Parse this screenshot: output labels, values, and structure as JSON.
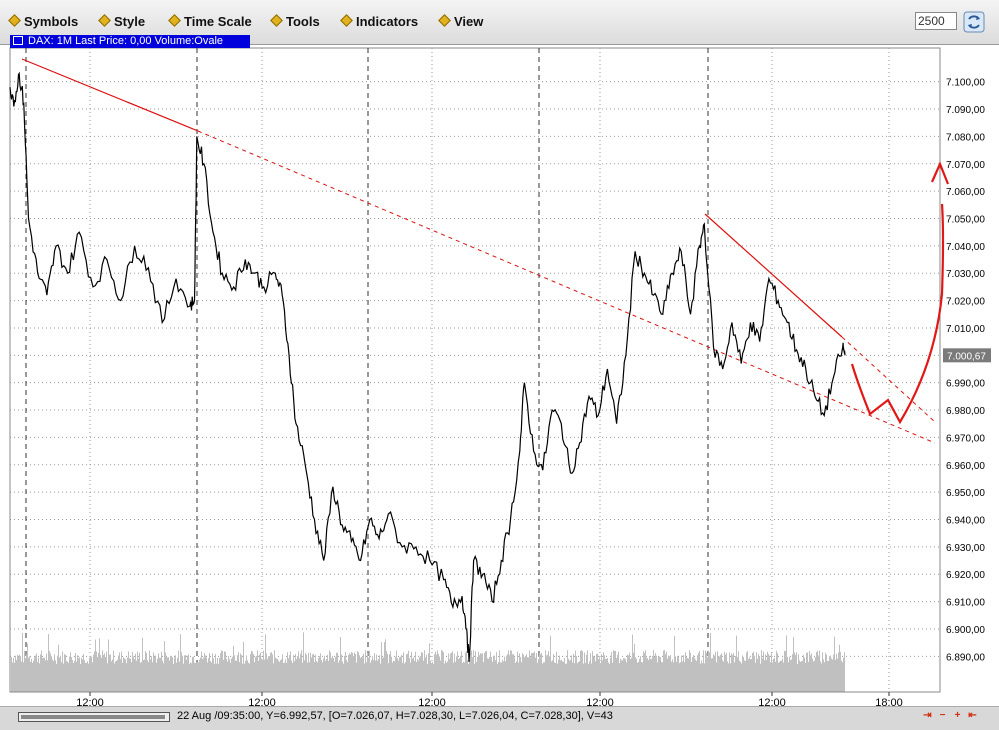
{
  "menu": {
    "items": [
      {
        "label": "Symbols"
      },
      {
        "label": "Style"
      },
      {
        "label": "Time Scale"
      },
      {
        "label": "Tools"
      },
      {
        "label": "Indicators"
      },
      {
        "label": "View"
      }
    ],
    "bars_value": "2500"
  },
  "chart_title": "DAX: 1M Last Price: 0,00 Volume:Ovale",
  "status": "22 Aug /09:35:00, Y=6.992,57, [O=7.026,07, H=7.028,30, L=7.026,04, C=7.028,30], V=43",
  "colors": {
    "price": "#000000",
    "trend": "#dd1111",
    "volume": "#c0c0c0",
    "price_tag": "#7a7a7a"
  },
  "chart_data": {
    "type": "line",
    "y_axis": {
      "min": 6885,
      "max": 7105,
      "step": 10,
      "tick_labels": [
        "7.100,00",
        "7.090,00",
        "7.080,00",
        "7.070,00",
        "7.060,00",
        "7.050,00",
        "7.040,00",
        "7.030,00",
        "7.020,00",
        "7.010,00",
        "7.000,00",
        "6.990,00",
        "6.980,00",
        "6.970,00",
        "6.960,00",
        "6.950,00",
        "6.940,00",
        "6.930,00",
        "6.920,00",
        "6.910,00",
        "6.900,00",
        "6.890,00"
      ]
    },
    "x_tick_labels": [
      "12:00",
      "12:00",
      "12:00",
      "12:00",
      "12:00",
      "18:00"
    ],
    "last_price_label": "7.000,67",
    "series": [
      {
        "points": [
          [
            0,
            7098
          ],
          [
            2,
            7093
          ],
          [
            4,
            7103
          ],
          [
            6,
            7092
          ],
          [
            8,
            7050
          ],
          [
            12,
            7030
          ],
          [
            16,
            7022
          ],
          [
            20,
            7040
          ],
          [
            25,
            7030
          ],
          [
            30,
            7045
          ],
          [
            36,
            7025
          ],
          [
            42,
            7035
          ],
          [
            48,
            7020
          ],
          [
            54,
            7040
          ],
          [
            60,
            7032
          ],
          [
            66,
            7012
          ],
          [
            72,
            7028
          ],
          [
            78,
            7018
          ],
          [
            80,
            7020
          ],
          [
            81,
            7080
          ],
          [
            84,
            7070
          ],
          [
            88,
            7045
          ],
          [
            92,
            7030
          ],
          [
            97,
            7025
          ],
          [
            102,
            7035
          ],
          [
            106,
            7030
          ],
          [
            110,
            7025
          ],
          [
            115,
            7030
          ],
          [
            118,
            7022
          ],
          [
            121,
            7000
          ],
          [
            124,
            6975
          ],
          [
            128,
            6960
          ],
          [
            132,
            6940
          ],
          [
            136,
            6925
          ],
          [
            140,
            6952
          ],
          [
            144,
            6938
          ],
          [
            148,
            6932
          ],
          [
            152,
            6925
          ],
          [
            156,
            6940
          ],
          [
            160,
            6933
          ],
          [
            164,
            6942
          ],
          [
            170,
            6930
          ],
          [
            176,
            6930
          ],
          [
            182,
            6925
          ],
          [
            188,
            6918
          ],
          [
            192,
            6908
          ],
          [
            196,
            6912
          ],
          [
            198,
            6900
          ],
          [
            199,
            6888
          ],
          [
            201,
            6925
          ],
          [
            205,
            6920
          ],
          [
            209,
            6910
          ],
          [
            213,
            6925
          ],
          [
            217,
            6940
          ],
          [
            221,
            6965
          ],
          [
            223,
            6990
          ],
          [
            227,
            6965
          ],
          [
            231,
            6958
          ],
          [
            235,
            6980
          ],
          [
            239,
            6975
          ],
          [
            243,
            6957
          ],
          [
            247,
            6968
          ],
          [
            251,
            6985
          ],
          [
            255,
            6978
          ],
          [
            259,
            6995
          ],
          [
            263,
            6975
          ],
          [
            267,
            7000
          ],
          [
            271,
            7038
          ],
          [
            275,
            7030
          ],
          [
            279,
            7022
          ],
          [
            283,
            7015
          ],
          [
            287,
            7030
          ],
          [
            291,
            7038
          ],
          [
            295,
            7015
          ],
          [
            299,
            7040
          ],
          [
            301,
            7048
          ],
          [
            305,
            7003
          ],
          [
            309,
            6995
          ],
          [
            313,
            7012
          ],
          [
            317,
            6997
          ],
          [
            321,
            7012
          ],
          [
            325,
            7005
          ],
          [
            329,
            7028
          ],
          [
            333,
            7020
          ],
          [
            337,
            7012
          ],
          [
            341,
            7002
          ],
          [
            345,
            6995
          ],
          [
            349,
            6985
          ],
          [
            353,
            6978
          ],
          [
            357,
            6992
          ],
          [
            361,
            7003
          ],
          [
            362,
            7000
          ]
        ]
      }
    ],
    "volume": {
      "min": 0,
      "max": 100
    }
  }
}
